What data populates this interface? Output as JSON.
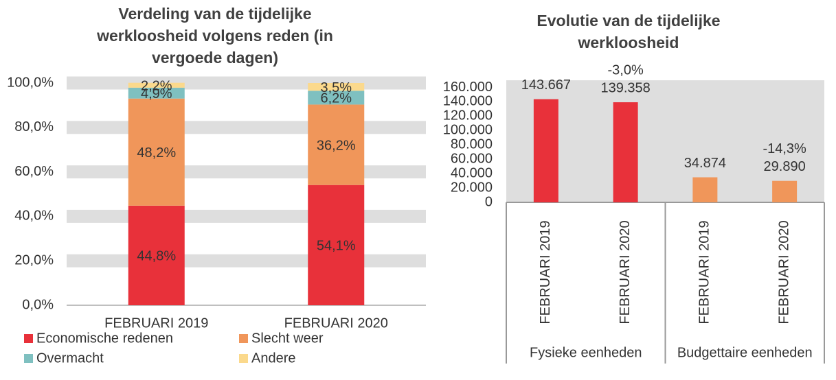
{
  "chart_data": [
    {
      "type": "stacked-bar",
      "title": "Verdeling van de tijdelijke werkloosheid volgens reden (in vergoede dagen)",
      "categories": [
        "FEBRUARI 2019",
        "FEBRUARI 2020"
      ],
      "series": [
        {
          "name": "Economische redenen",
          "color": "#e8313a",
          "values": [
            44.8,
            54.1
          ],
          "value_labels": [
            "44,8%",
            "54,1%"
          ]
        },
        {
          "name": "Slecht weer",
          "color": "#f0965a",
          "values": [
            48.2,
            36.2
          ],
          "value_labels": [
            "48,2%",
            "36,2%"
          ]
        },
        {
          "name": "Overmacht",
          "color": "#7fc0c0",
          "values": [
            4.9,
            6.2
          ],
          "value_labels": [
            "4,9%",
            "6,2%"
          ]
        },
        {
          "name": "Andere",
          "color": "#fbd98c",
          "values": [
            2.2,
            3.5
          ],
          "value_labels": [
            "2,2%",
            "3,5%"
          ]
        }
      ],
      "ylim": [
        0,
        100
      ],
      "yticks": [
        {
          "value": 0,
          "label": "0,0%"
        },
        {
          "value": 20,
          "label": "20,0%"
        },
        {
          "value": 40,
          "label": "40,0%"
        },
        {
          "value": 60,
          "label": "60,0%"
        },
        {
          "value": 80,
          "label": "80,0%"
        },
        {
          "value": 100,
          "label": "100,0%"
        }
      ],
      "grid": true,
      "legend": "bottom"
    },
    {
      "type": "bar",
      "title": "Evolutie van de tijdelijke werkloosheid",
      "categories": [
        "FEBRUARI 2019",
        "FEBRUARI 2020",
        "FEBRUARI 2019",
        "FEBRUARI 2020"
      ],
      "groups": [
        "Fysieke eenheden",
        "Budgettaire eenheden"
      ],
      "values": [
        143667,
        139358,
        34874,
        29890
      ],
      "value_labels": [
        "143.667",
        "139.358",
        "34.874",
        "29.890"
      ],
      "change_labels": [
        null,
        "-3,0%",
        null,
        "-14,3%"
      ],
      "colors": [
        "#e8313a",
        "#e8313a",
        "#f0965a",
        "#f0965a"
      ],
      "ylim": [
        0,
        170000
      ],
      "yticks": [
        0,
        {
          "value": 20000,
          "label": "20.000"
        },
        {
          "value": 40000,
          "label": "40.000"
        },
        {
          "value": 60000,
          "label": "60.000"
        },
        {
          "value": 80000,
          "label": "80.000"
        },
        {
          "value": 100000,
          "label": "100.000"
        },
        {
          "value": 120000,
          "label": "120.000"
        },
        {
          "value": 140000,
          "label": "140.000"
        },
        {
          "value": 160000,
          "label": "160.000"
        }
      ]
    }
  ]
}
